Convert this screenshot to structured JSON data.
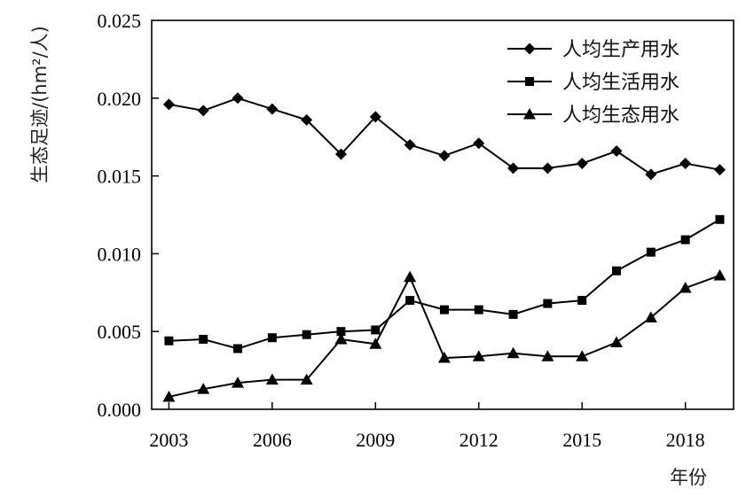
{
  "chart_data": {
    "type": "line",
    "ylabel": "生态足迹/(hm²/人)",
    "xlabel": "年份",
    "x": [
      2003,
      2004,
      2005,
      2006,
      2007,
      2008,
      2009,
      2010,
      2011,
      2012,
      2013,
      2014,
      2015,
      2016,
      2017,
      2018,
      2019
    ],
    "x_ticks": [
      "2003",
      "2006",
      "2009",
      "2012",
      "2015",
      "2018"
    ],
    "y_ticks": [
      "0.000",
      "0.005",
      "0.010",
      "0.015",
      "0.020",
      "0.025"
    ],
    "xlim": [
      2002.5,
      2019.4
    ],
    "ylim": [
      0,
      0.025
    ],
    "legend_position": "top-right",
    "grid": false,
    "series": [
      {
        "name": "人均生产用水",
        "marker": "diamond",
        "values": [
          0.0196,
          0.0192,
          0.02,
          0.0193,
          0.0186,
          0.0164,
          0.0188,
          0.017,
          0.0163,
          0.0171,
          0.0155,
          0.0155,
          0.0158,
          0.0166,
          0.0151,
          0.0158,
          0.0154
        ]
      },
      {
        "name": "人均生活用水",
        "marker": "square",
        "values": [
          0.0044,
          0.0045,
          0.0039,
          0.0046,
          0.0048,
          0.005,
          0.0051,
          0.007,
          0.0064,
          0.0064,
          0.0061,
          0.0068,
          0.007,
          0.0089,
          0.0101,
          0.0109,
          0.0122
        ]
      },
      {
        "name": "人均生态用水",
        "marker": "triangle",
        "values": [
          0.0008,
          0.0013,
          0.0017,
          0.0019,
          0.0019,
          0.0045,
          0.0042,
          0.0085,
          0.0033,
          0.0034,
          0.0036,
          0.0034,
          0.0034,
          0.0043,
          0.0059,
          0.0078,
          0.0086
        ]
      }
    ]
  }
}
